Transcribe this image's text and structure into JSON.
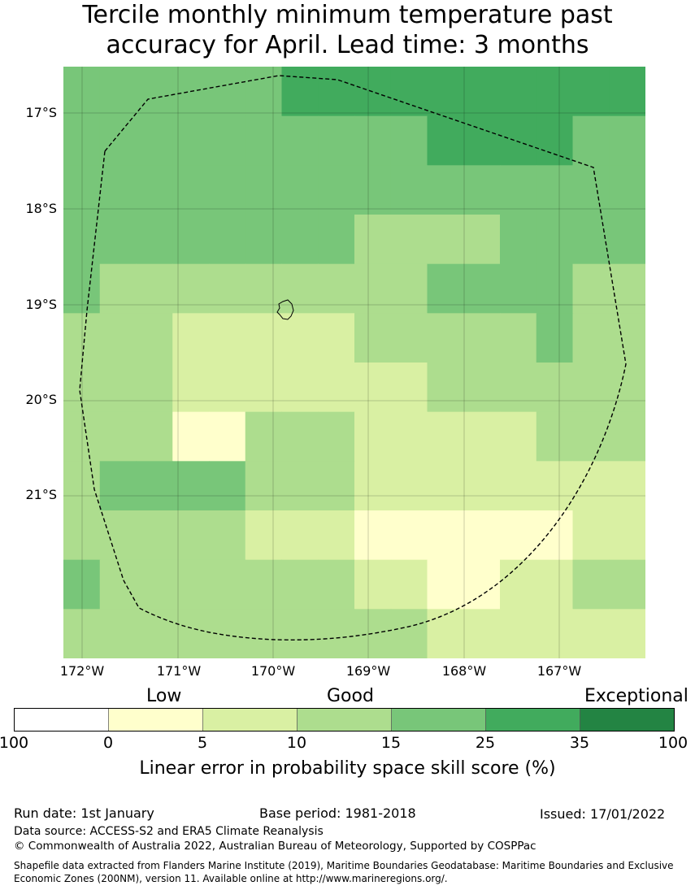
{
  "title_lines": [
    "Tercile monthly minimum temperature past",
    "accuracy for April. Lead time: 3 months"
  ],
  "map": {
    "lat_labels": [
      "17°S",
      "18°S",
      "19°S",
      "20°S",
      "21°S"
    ],
    "lon_labels": [
      "172°W",
      "171°W",
      "170°W",
      "169°W",
      "168°W",
      "167°W"
    ],
    "grid": [
      [
        4,
        4,
        4,
        4,
        4,
        4,
        5,
        5,
        5,
        5,
        5,
        5,
        5,
        5,
        5,
        5
      ],
      [
        4,
        4,
        4,
        4,
        4,
        4,
        4,
        4,
        4,
        4,
        5,
        5,
        5,
        5,
        4,
        4
      ],
      [
        4,
        4,
        4,
        4,
        4,
        4,
        4,
        4,
        4,
        4,
        4,
        4,
        4,
        4,
        4,
        4
      ],
      [
        4,
        4,
        4,
        4,
        4,
        4,
        4,
        4,
        3,
        3,
        3,
        3,
        4,
        4,
        4,
        4
      ],
      [
        4,
        3,
        3,
        3,
        3,
        3,
        3,
        3,
        3,
        3,
        4,
        4,
        4,
        4,
        3,
        3
      ],
      [
        3,
        3,
        3,
        2,
        2,
        2,
        2,
        2,
        3,
        3,
        3,
        3,
        3,
        4,
        3,
        3
      ],
      [
        3,
        3,
        3,
        2,
        2,
        2,
        2,
        2,
        2,
        2,
        3,
        3,
        3,
        3,
        3,
        3
      ],
      [
        3,
        3,
        3,
        1,
        1,
        3,
        3,
        3,
        2,
        2,
        2,
        2,
        2,
        3,
        3,
        3
      ],
      [
        3,
        4,
        4,
        4,
        4,
        3,
        3,
        3,
        2,
        2,
        2,
        2,
        2,
        2,
        2,
        2
      ],
      [
        3,
        3,
        3,
        3,
        3,
        2,
        2,
        2,
        1,
        1,
        1,
        1,
        1,
        1,
        2,
        2
      ],
      [
        4,
        3,
        3,
        3,
        3,
        3,
        3,
        3,
        2,
        2,
        1,
        1,
        2,
        2,
        3,
        3
      ],
      [
        3,
        3,
        3,
        3,
        3,
        3,
        3,
        3,
        3,
        3,
        2,
        2,
        2,
        2,
        2,
        2
      ]
    ]
  },
  "legend": {
    "category_labels": [
      "Low",
      "Good",
      "Exceptional"
    ],
    "tick_labels": [
      "100",
      "0",
      "5",
      "10",
      "15",
      "25",
      "35",
      "100"
    ],
    "colors": [
      "#ffffff",
      "#ffffcc",
      "#d9f0a3",
      "#addd8e",
      "#78c679",
      "#41ab5d",
      "#238443"
    ],
    "axis_label": "Linear error in probability space skill score (%)"
  },
  "footer": {
    "run_date": "Run date: 1st January",
    "base_period": "Base period: 1981-2018",
    "issued": "Issued: 17/01/2022",
    "data_source": "Data source: ACCESS-S2 and ERA5 Climate Reanalysis",
    "copyright": "© Commonwealth of Australia 2022, Australian Bureau of Meteorology, Supported by COSPPac",
    "shapefile_note": "Shapefile data extracted from Flanders Marine Institute (2019), Maritime Boundaries Geodatabase: Maritime Boundaries and Exclusive Economic Zones (200NM), version 11. Available online at http://www.marineregions.org/."
  }
}
